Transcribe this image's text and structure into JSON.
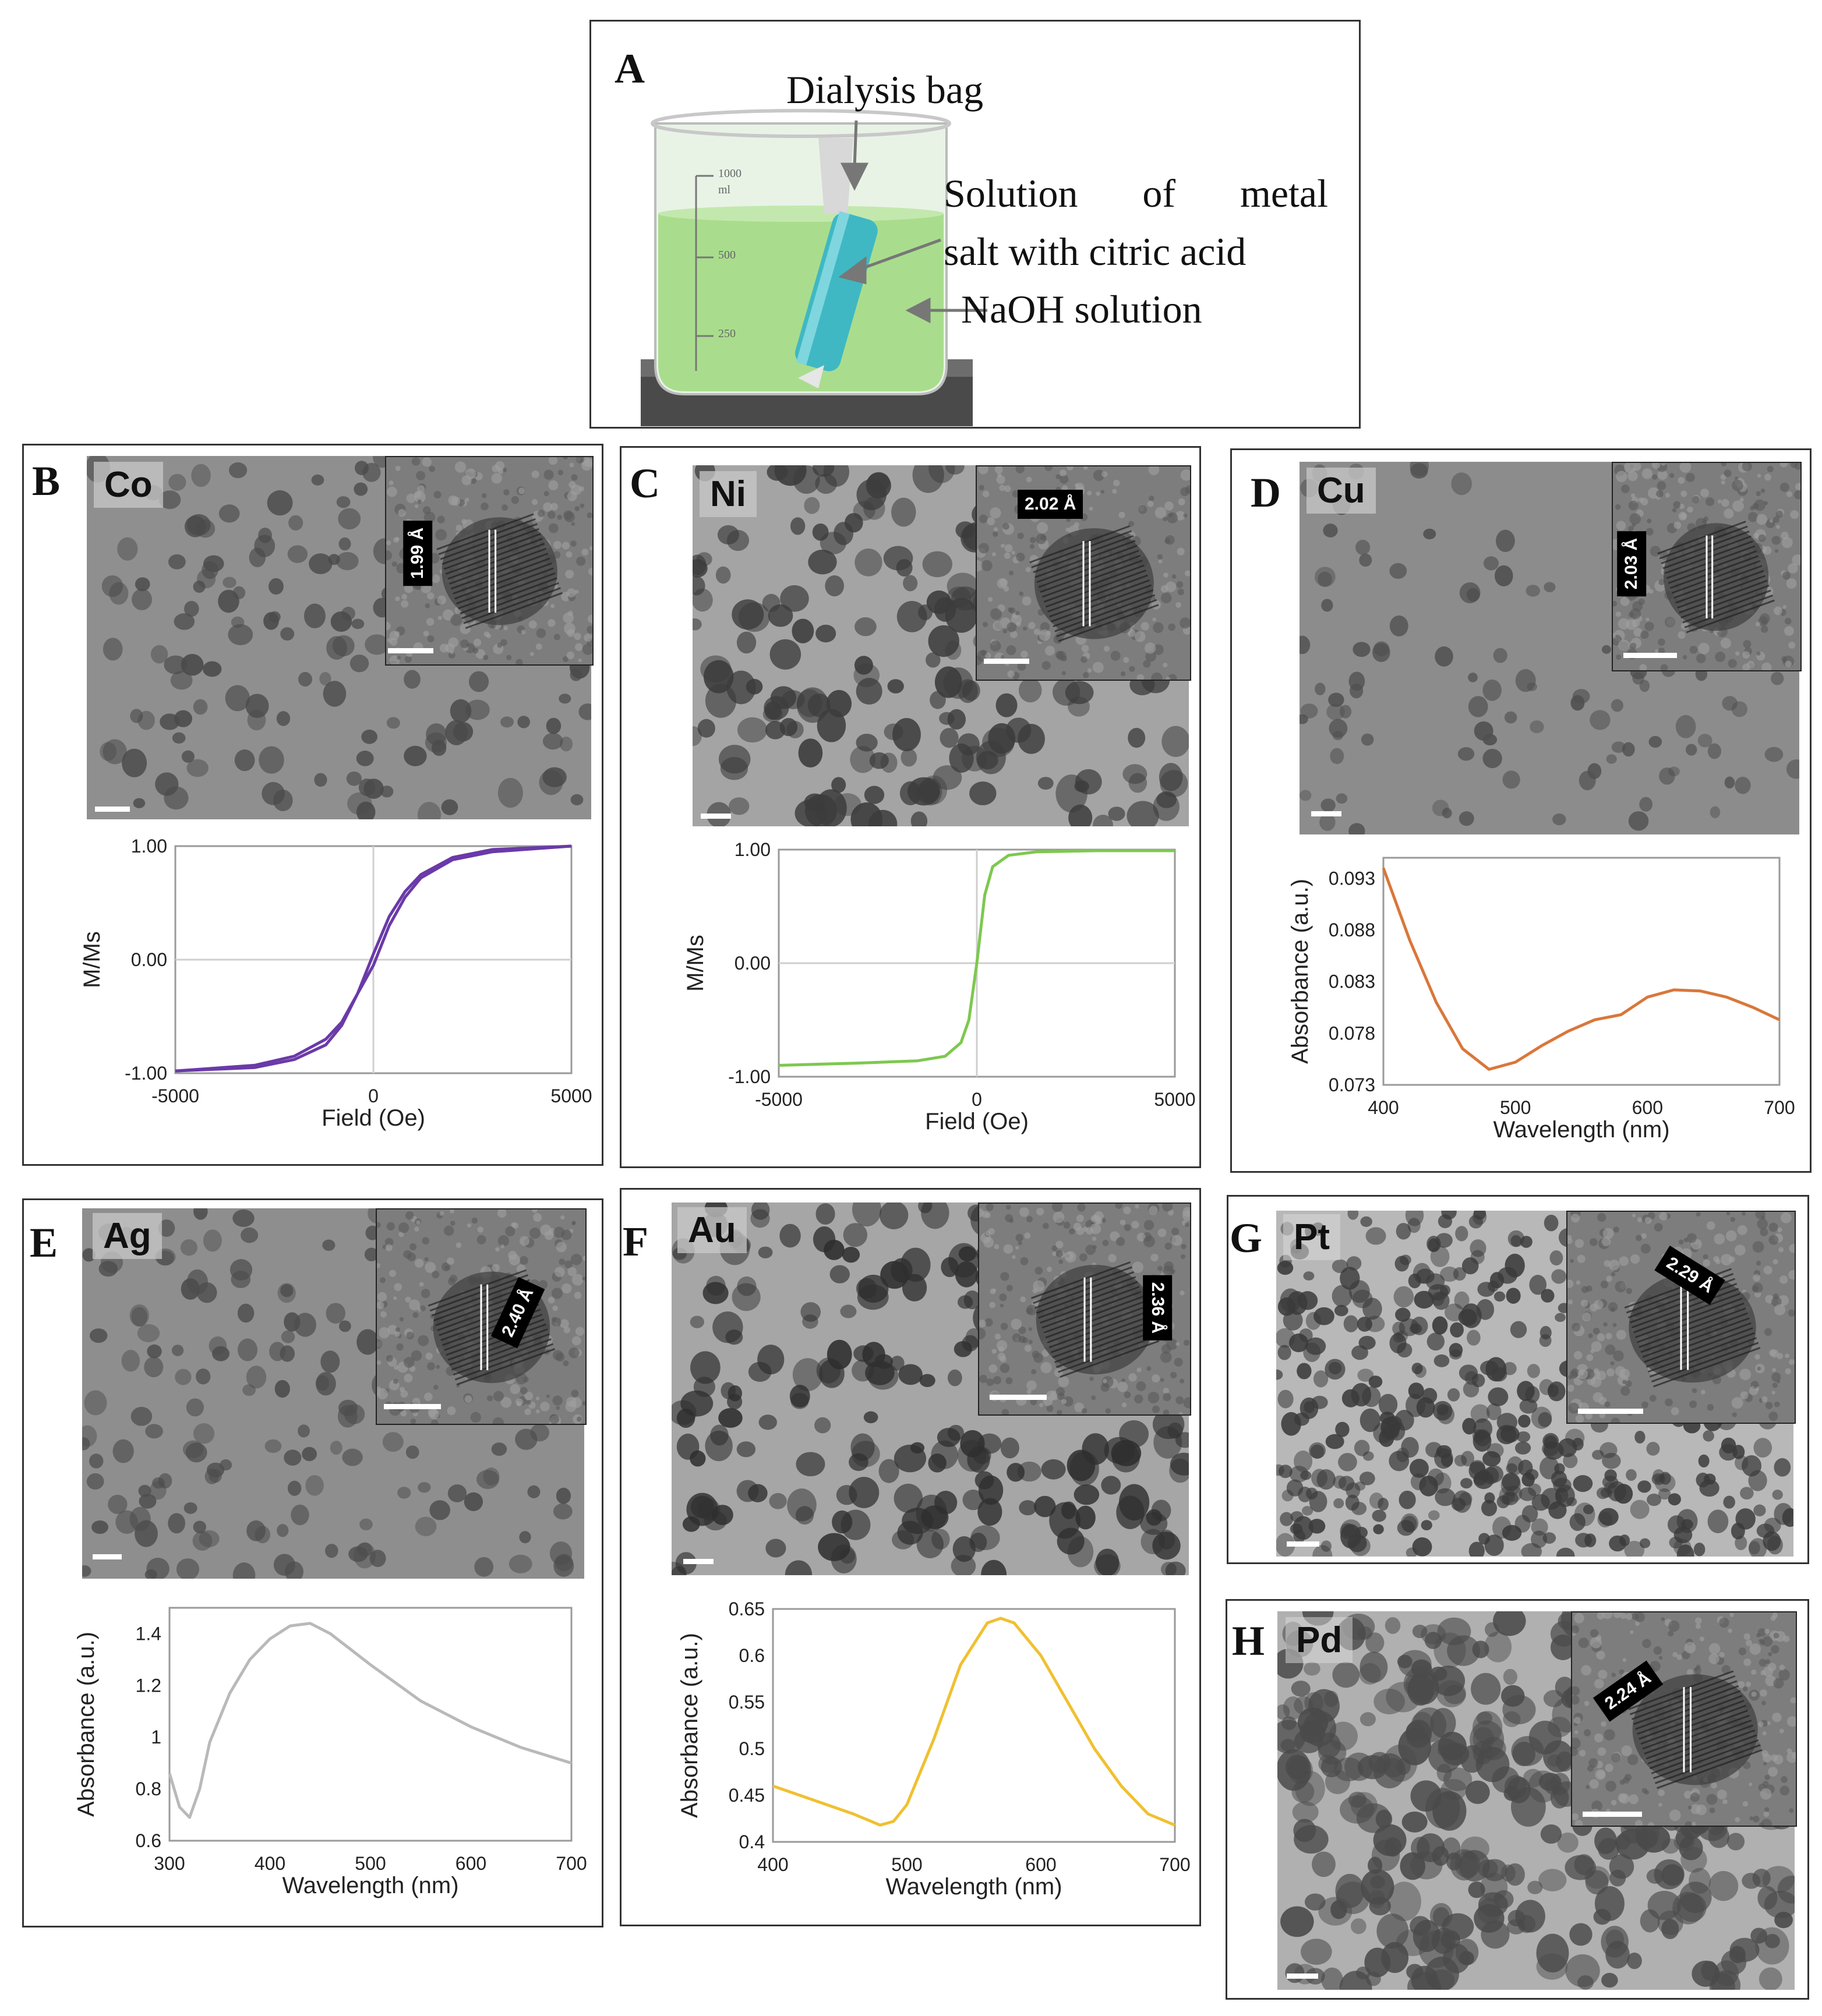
{
  "panelA": {
    "label": "A",
    "dialysis_bag": "Dialysis bag",
    "solution_line1": "Solution of metal",
    "solution_line2": "salt with citric acid",
    "naoh": "NaOH solution",
    "beaker_marks": [
      "1000",
      "ml",
      "500",
      "250"
    ]
  },
  "panels": [
    {
      "label": "B",
      "element": "Co",
      "d_spacing": "1.99 Å"
    },
    {
      "label": "C",
      "element": "Ni",
      "d_spacing": "2.02 Å"
    },
    {
      "label": "D",
      "element": "Cu",
      "d_spacing": "2.03 Å"
    },
    {
      "label": "E",
      "element": "Ag",
      "d_spacing": "2.40 Å"
    },
    {
      "label": "F",
      "element": "Au",
      "d_spacing": "2.36 Å"
    },
    {
      "label": "G",
      "element": "Pt",
      "d_spacing": "2.29 Å"
    },
    {
      "label": "H",
      "element": "Pd",
      "d_spacing": "2.24 Å"
    }
  ],
  "chart_data": [
    {
      "id": "co",
      "type": "line",
      "xlabel": "Field (Oe)",
      "ylabel": "M/Ms",
      "xlim": [
        -5000,
        5000
      ],
      "ylim": [
        -1,
        1
      ],
      "xticks": [
        "-5000",
        "0",
        "5000"
      ],
      "yticks": [
        "1.00",
        "0.00",
        "-1.00"
      ],
      "color": "#6a3aa8",
      "series": [
        {
          "x": [
            -5000,
            -3000,
            -2000,
            -1200,
            -800,
            -400,
            0,
            400,
            800,
            1200,
            2000,
            3000,
            5000
          ],
          "y": [
            -0.98,
            -0.93,
            -0.85,
            -0.7,
            -0.55,
            -0.3,
            -0.05,
            0.3,
            0.55,
            0.72,
            0.88,
            0.95,
            1.0
          ]
        },
        {
          "x": [
            -5000,
            -3000,
            -2000,
            -1200,
            -800,
            -400,
            0,
            400,
            800,
            1200,
            2000,
            3000,
            5000
          ],
          "y": [
            -0.98,
            -0.95,
            -0.88,
            -0.75,
            -0.58,
            -0.3,
            0.05,
            0.38,
            0.6,
            0.75,
            0.9,
            0.97,
            1.0
          ]
        }
      ]
    },
    {
      "id": "ni",
      "type": "line",
      "xlabel": "Field (Oe)",
      "ylabel": "M/Ms",
      "xlim": [
        -5000,
        5000
      ],
      "ylim": [
        -1,
        1
      ],
      "xticks": [
        "-5000",
        "0",
        "5000"
      ],
      "yticks": [
        "1.00",
        "0.00",
        "-1.00"
      ],
      "color": "#7ec850",
      "series": [
        {
          "x": [
            -5000,
            -3000,
            -1500,
            -800,
            -400,
            -200,
            0,
            200,
            400,
            800,
            1500,
            3000,
            5000
          ],
          "y": [
            -0.9,
            -0.88,
            -0.86,
            -0.82,
            -0.7,
            -0.5,
            0.0,
            0.6,
            0.85,
            0.95,
            0.98,
            0.99,
            0.99
          ]
        }
      ]
    },
    {
      "id": "cu",
      "type": "line",
      "xlabel": "Wavelength (nm)",
      "ylabel": "Absorbance (a.u.)",
      "xlim": [
        400,
        700
      ],
      "ylim": [
        0.073,
        0.095
      ],
      "xticks": [
        "400",
        "500",
        "600",
        "700"
      ],
      "yticks": [
        "0.093",
        "0.088",
        "0.083",
        "0.078",
        "0.073"
      ],
      "color": "#d9773a",
      "series": [
        {
          "x": [
            400,
            420,
            440,
            460,
            480,
            500,
            520,
            540,
            560,
            580,
            600,
            620,
            640,
            660,
            680,
            700
          ],
          "y": [
            0.094,
            0.087,
            0.081,
            0.0765,
            0.0745,
            0.0752,
            0.0768,
            0.0782,
            0.0793,
            0.0798,
            0.0815,
            0.0822,
            0.0821,
            0.0815,
            0.0805,
            0.0793
          ]
        }
      ]
    },
    {
      "id": "ag",
      "type": "line",
      "xlabel": "Wavelength (nm)",
      "ylabel": "Absorbance (a.u.)",
      "xlim": [
        300,
        700
      ],
      "ylim": [
        0.6,
        1.5
      ],
      "xticks": [
        "300",
        "400",
        "500",
        "600",
        "700"
      ],
      "yticks": [
        "1.4",
        "1.2",
        "1",
        "0.8",
        "0.6"
      ],
      "color": "#b9b9b9",
      "series": [
        {
          "x": [
            300,
            310,
            320,
            330,
            340,
            360,
            380,
            400,
            420,
            440,
            460,
            500,
            550,
            600,
            650,
            700
          ],
          "y": [
            0.86,
            0.73,
            0.69,
            0.8,
            0.98,
            1.17,
            1.3,
            1.38,
            1.43,
            1.44,
            1.4,
            1.28,
            1.14,
            1.04,
            0.96,
            0.9
          ]
        }
      ]
    },
    {
      "id": "au",
      "type": "line",
      "xlabel": "Wavelength (nm)",
      "ylabel": "Absorbance (a.u.)",
      "xlim": [
        400,
        700
      ],
      "ylim": [
        0.4,
        0.65
      ],
      "xticks": [
        "400",
        "500",
        "600",
        "700"
      ],
      "yticks": [
        "0.65",
        "0.6",
        "0.55",
        "0.5",
        "0.45",
        "0.4"
      ],
      "color": "#f0c030",
      "series": [
        {
          "x": [
            400,
            420,
            440,
            460,
            480,
            490,
            500,
            520,
            540,
            560,
            570,
            580,
            600,
            620,
            640,
            660,
            680,
            700
          ],
          "y": [
            0.46,
            0.45,
            0.44,
            0.43,
            0.418,
            0.422,
            0.44,
            0.51,
            0.59,
            0.635,
            0.64,
            0.635,
            0.6,
            0.55,
            0.5,
            0.46,
            0.43,
            0.418
          ]
        }
      ]
    }
  ]
}
